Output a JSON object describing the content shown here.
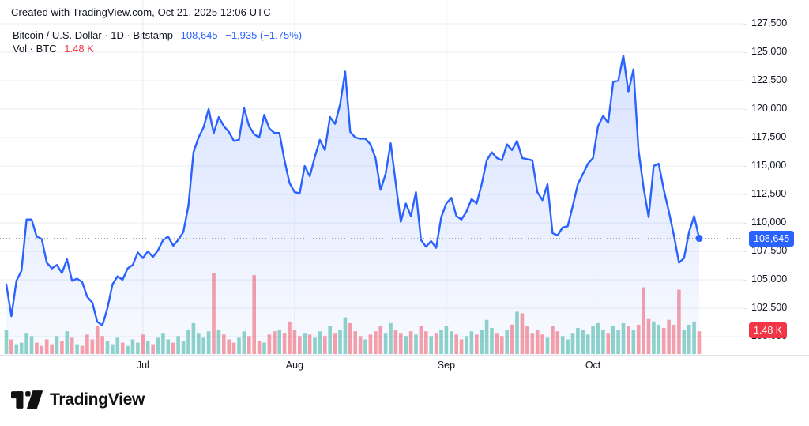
{
  "attribution": "Created with TradingView.com, Oct 21, 2025 12:06 UTC",
  "legend": {
    "symbol_line": "Bitcoin / U.S. Dollar · 1D · Bitstamp",
    "price": "108,645",
    "change": "−1,935 (−1.75%)",
    "vol_line": "Vol · BTC",
    "vol_value": "1.48 K"
  },
  "axis": {
    "price_badge": "108,645",
    "volume_badge": "1.48 K"
  },
  "footer": {
    "brand": "TradingView"
  },
  "colors": {
    "accent_blue": "#2962ff",
    "negative_red": "#f23645",
    "volume_up": "rgba(34,171,148,0.5)",
    "volume_down": "rgba(247,82,95,0.55)",
    "grid": "#e9ecf3",
    "dotted_line": "#9aa0ab",
    "text": "#131722",
    "area_top": "rgba(41,98,255,0.18)",
    "area_bottom": "rgba(41,98,255,0.03)"
  },
  "chart_data": {
    "type": "area",
    "title": "Bitcoin / U.S. Dollar",
    "interval": "1D",
    "exchange": "Bitstamp",
    "last_price": 108645,
    "change": -1935,
    "change_pct": -1.75,
    "volume_display": "1.48 K",
    "legend_position": "top-left",
    "grid": true,
    "y_axis": {
      "min": 100000,
      "max": 127500,
      "step": 2500,
      "ticks": [
        {
          "label": "127,500",
          "value": 127500
        },
        {
          "label": "125,000",
          "value": 125000
        },
        {
          "label": "122,500",
          "value": 122500
        },
        {
          "label": "120,000",
          "value": 120000
        },
        {
          "label": "117,500",
          "value": 117500
        },
        {
          "label": "115,000",
          "value": 115000
        },
        {
          "label": "112,500",
          "value": 112500
        },
        {
          "label": "110,000",
          "value": 110000
        },
        {
          "label": "107,500",
          "value": 107500
        },
        {
          "label": "105,000",
          "value": 105000
        },
        {
          "label": "102,500",
          "value": 102500
        },
        {
          "label": "100,000",
          "value": 100000
        }
      ]
    },
    "x_ticks": [
      {
        "label": "Jul",
        "index": 27
      },
      {
        "label": "Aug",
        "index": 57
      },
      {
        "label": "Sep",
        "index": 87
      },
      {
        "label": "Oct",
        "index": 116
      }
    ],
    "prices": [
      104600,
      101800,
      104900,
      105800,
      110300,
      110300,
      108800,
      108600,
      106500,
      106000,
      106300,
      105600,
      106800,
      104900,
      105100,
      104800,
      103500,
      103000,
      101300,
      101000,
      102500,
      104600,
      105300,
      105000,
      106000,
      106300,
      107400,
      106900,
      107500,
      107000,
      107600,
      108500,
      108800,
      108000,
      108500,
      109200,
      111500,
      116200,
      117500,
      118400,
      120000,
      117900,
      119300,
      118500,
      118000,
      117200,
      117300,
      120100,
      118500,
      117800,
      117500,
      119500,
      118300,
      117900,
      117900,
      115500,
      113500,
      112700,
      112600,
      115000,
      114100,
      115800,
      117300,
      116400,
      119300,
      118700,
      120400,
      123300,
      118000,
      117500,
      117400,
      117400,
      116900,
      115700,
      112900,
      114300,
      117000,
      113500,
      110100,
      111700,
      110600,
      112700,
      108500,
      107900,
      108400,
      107800,
      110500,
      111700,
      112200,
      110600,
      110300,
      111000,
      112100,
      111700,
      113400,
      115500,
      116200,
      115700,
      115500,
      116900,
      116400,
      117200,
      115700,
      115600,
      115500,
      112700,
      112000,
      113400,
      109100,
      108900,
      109600,
      109700,
      111500,
      113400,
      114300,
      115200,
      115700,
      118500,
      119400,
      118800,
      122400,
      122500,
      124700,
      121500,
      123500,
      116400,
      113100,
      110500,
      115000,
      115200,
      112900,
      111000,
      108900,
      106500,
      106900,
      109200,
      110600,
      108645
    ],
    "volume_rel": [
      0.3,
      0.18,
      0.12,
      0.14,
      0.26,
      0.22,
      0.14,
      0.1,
      0.18,
      0.12,
      0.22,
      0.16,
      0.28,
      0.2,
      0.12,
      0.1,
      0.24,
      0.18,
      0.35,
      0.22,
      0.16,
      0.12,
      0.2,
      0.14,
      0.1,
      0.18,
      0.14,
      0.24,
      0.16,
      0.12,
      0.2,
      0.26,
      0.18,
      0.14,
      0.22,
      0.16,
      0.3,
      0.38,
      0.26,
      0.2,
      0.28,
      1.0,
      0.3,
      0.24,
      0.18,
      0.14,
      0.2,
      0.28,
      0.22,
      0.97,
      0.16,
      0.14,
      0.24,
      0.28,
      0.3,
      0.26,
      0.4,
      0.3,
      0.22,
      0.26,
      0.24,
      0.2,
      0.28,
      0.22,
      0.34,
      0.26,
      0.3,
      0.45,
      0.38,
      0.28,
      0.22,
      0.18,
      0.24,
      0.28,
      0.34,
      0.26,
      0.38,
      0.3,
      0.26,
      0.22,
      0.28,
      0.24,
      0.34,
      0.28,
      0.22,
      0.26,
      0.3,
      0.34,
      0.28,
      0.24,
      0.18,
      0.22,
      0.28,
      0.24,
      0.3,
      0.42,
      0.32,
      0.26,
      0.22,
      0.3,
      0.36,
      0.52,
      0.5,
      0.34,
      0.26,
      0.3,
      0.24,
      0.2,
      0.34,
      0.28,
      0.22,
      0.18,
      0.26,
      0.32,
      0.3,
      0.24,
      0.34,
      0.38,
      0.3,
      0.26,
      0.34,
      0.3,
      0.38,
      0.34,
      0.3,
      0.36,
      0.82,
      0.44,
      0.4,
      0.36,
      0.32,
      0.42,
      0.36,
      0.79,
      0.3,
      0.36,
      0.4,
      0.28
    ]
  }
}
